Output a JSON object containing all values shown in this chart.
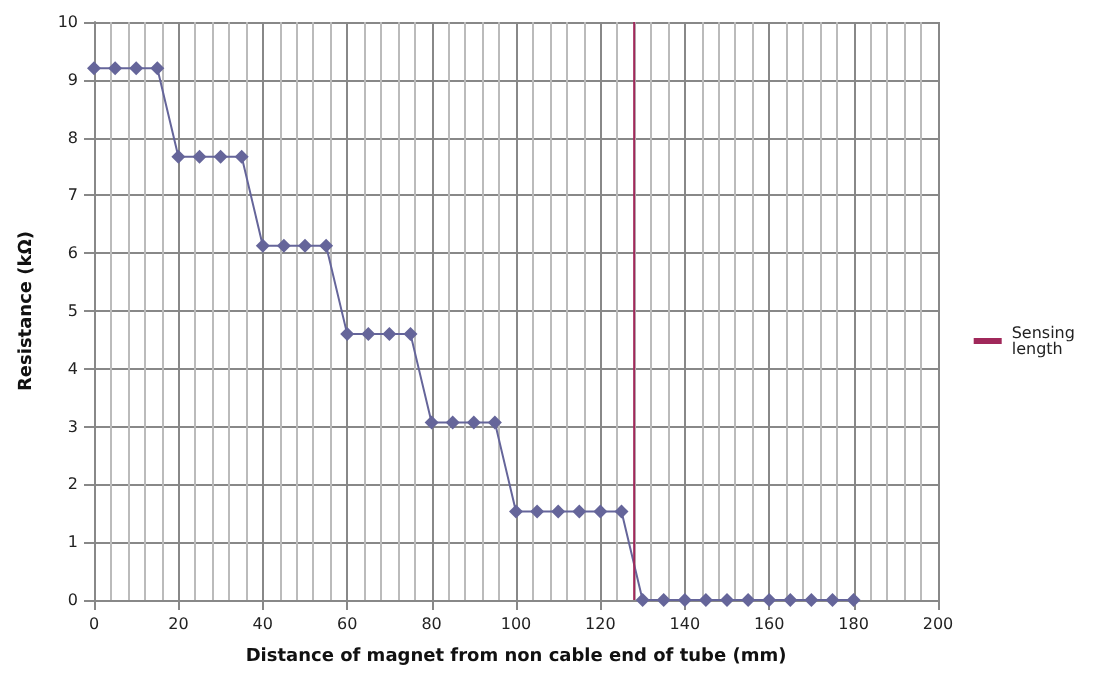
{
  "chart_data": {
    "type": "line",
    "xlabel": "Distance of magnet from non cable end of tube (mm)",
    "ylabel": "Resistance (kΩ)",
    "x": [
      0,
      5,
      10,
      15,
      20,
      25,
      30,
      35,
      40,
      45,
      50,
      55,
      60,
      65,
      70,
      75,
      80,
      85,
      90,
      95,
      100,
      105,
      110,
      115,
      120,
      125,
      130,
      135,
      140,
      145,
      150,
      155,
      160,
      165,
      170,
      175,
      180
    ],
    "series": [
      {
        "color": "#65659a",
        "values": [
          9.2,
          9.2,
          9.2,
          9.2,
          7.67,
          7.67,
          7.67,
          7.67,
          6.13,
          6.13,
          6.13,
          6.13,
          4.6,
          4.6,
          4.6,
          4.6,
          3.07,
          3.07,
          3.07,
          3.07,
          1.53,
          1.53,
          1.53,
          1.53,
          1.53,
          1.53,
          0,
          0,
          0,
          0,
          0,
          0,
          0,
          0,
          0,
          0,
          0
        ],
        "marker": "diamond"
      },
      {
        "name": "Sensing length",
        "color": "#a0285a",
        "x": [
          128,
          128
        ],
        "values": [
          0,
          10
        ],
        "marker": "none"
      }
    ],
    "xlim": [
      0,
      200
    ],
    "xticks": [
      0,
      20,
      40,
      60,
      80,
      100,
      120,
      140,
      160,
      180,
      200
    ],
    "ylim": [
      0,
      10
    ],
    "yticks": [
      0,
      1,
      2,
      3,
      4,
      5,
      6,
      7,
      8,
      9,
      10
    ],
    "grid": true,
    "legend": "right",
    "line_style": "solid"
  }
}
